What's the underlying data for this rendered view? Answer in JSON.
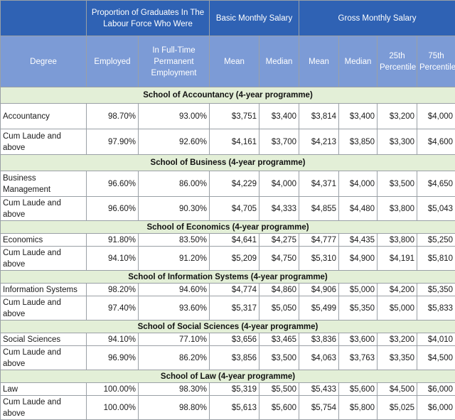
{
  "header": {
    "group_proportion": "Proportion of Graduates In The Labour Force Who Were",
    "group_basic": "Basic Monthly Salary",
    "group_gross": "Gross Monthly Salary",
    "col_degree": "Degree",
    "col_employed": "Employed",
    "col_fulltime": "In Full-Time Permanent Employment",
    "col_basic_mean": "Mean",
    "col_basic_median": "Median",
    "col_gross_mean": "Mean",
    "col_gross_median": "Median",
    "col_p25": "25th Percentile",
    "col_p75": "75th Percentile"
  },
  "sections": [
    {
      "title": "School of Accountancy (4-year programme)",
      "rows": [
        {
          "degree": "Accountancy",
          "employed": "98.70%",
          "fulltime": "93.00%",
          "basic_mean": "$3,751",
          "basic_median": "$3,400",
          "gross_mean": "$3,814",
          "gross_median": "$3,400",
          "p25": "$3,200",
          "p75": "$4,000"
        },
        {
          "degree": "Cum Laude and above",
          "employed": "97.90%",
          "fulltime": "92.60%",
          "basic_mean": "$4,161",
          "basic_median": "$3,700",
          "gross_mean": "$4,213",
          "gross_median": "$3,850",
          "p25": "$3,300",
          "p75": "$4,600"
        }
      ]
    },
    {
      "title": "School of Business (4-year programme)",
      "rows": [
        {
          "degree": "Business Management",
          "employed": "96.60%",
          "fulltime": "86.00%",
          "basic_mean": "$4,229",
          "basic_median": "$4,000",
          "gross_mean": "$4,371",
          "gross_median": "$4,000",
          "p25": "$3,500",
          "p75": "$4,650"
        },
        {
          "degree": "Cum Laude and above",
          "employed": "96.60%",
          "fulltime": "90.30%",
          "basic_mean": "$4,705",
          "basic_median": "$4,333",
          "gross_mean": "$4,855",
          "gross_median": "$4,480",
          "p25": "$3,800",
          "p75": "$5,043"
        }
      ]
    },
    {
      "title": "School of Economics (4-year programme)",
      "rows": [
        {
          "degree": "Economics",
          "employed": "91.80%",
          "fulltime": "83.50%",
          "basic_mean": "$4,641",
          "basic_median": "$4,275",
          "gross_mean": "$4,777",
          "gross_median": "$4,435",
          "p25": "$3,800",
          "p75": "$5,250"
        },
        {
          "degree": "Cum Laude and above",
          "employed": "94.10%",
          "fulltime": "91.20%",
          "basic_mean": "$5,209",
          "basic_median": "$4,750",
          "gross_mean": "$5,310",
          "gross_median": "$4,900",
          "p25": "$4,191",
          "p75": "$5,810"
        }
      ]
    },
    {
      "title": "School of Information Systems (4-year programme)",
      "rows": [
        {
          "degree": "Information Systems",
          "employed": "98.20%",
          "fulltime": "94.60%",
          "basic_mean": "$4,774",
          "basic_median": "$4,860",
          "gross_mean": "$4,906",
          "gross_median": "$5,000",
          "p25": "$4,200",
          "p75": "$5,350"
        },
        {
          "degree": "Cum Laude and above",
          "employed": "97.40%",
          "fulltime": "93.60%",
          "basic_mean": "$5,317",
          "basic_median": "$5,050",
          "gross_mean": "$5,499",
          "gross_median": "$5,350",
          "p25": "$5,000",
          "p75": "$5,833"
        }
      ]
    },
    {
      "title": "School of Social Sciences (4-year programme)",
      "rows": [
        {
          "degree": "Social Sciences",
          "employed": "94.10%",
          "fulltime": "77.10%",
          "basic_mean": "$3,656",
          "basic_median": "$3,465",
          "gross_mean": "$3,836",
          "gross_median": "$3,600",
          "p25": "$3,200",
          "p75": "$4,010"
        },
        {
          "degree": "Cum Laude and above",
          "employed": "96.90%",
          "fulltime": "86.20%",
          "basic_mean": "$3,856",
          "basic_median": "$3,500",
          "gross_mean": "$4,063",
          "gross_median": "$3,763",
          "p25": "$3,350",
          "p75": "$4,500"
        }
      ]
    },
    {
      "title": "School of Law (4-year programme)",
      "rows": [
        {
          "degree": "Law",
          "employed": "100.00%",
          "fulltime": "98.30%",
          "basic_mean": "$5,319",
          "basic_median": "$5,500",
          "gross_mean": "$5,433",
          "gross_median": "$5,600",
          "p25": "$4,500",
          "p75": "$6,000"
        },
        {
          "degree": "Cum Laude and above",
          "employed": "100.00%",
          "fulltime": "98.80%",
          "basic_mean": "$5,613",
          "basic_median": "$5,600",
          "gross_mean": "$5,754",
          "gross_median": "$5,800",
          "p25": "$5,025",
          "p75": "$6,000"
        }
      ]
    }
  ]
}
